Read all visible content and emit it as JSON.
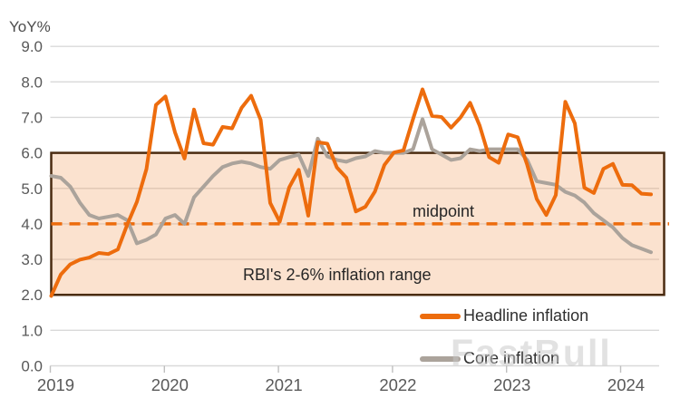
{
  "watermark": "FastBull",
  "colors": {
    "headline": "#ed6c0d",
    "core": "#aba39b",
    "band_fill": "rgba(242,164,105,0.32)",
    "band_border": "#4a2b10",
    "midpoint_line": "#ed6c0d",
    "grid": "#d9d9d9",
    "axis_text": "#595959",
    "annotation_text": "#262626",
    "watermark_text": "#c7c7c7"
  },
  "chart_data": {
    "type": "line",
    "unit_label": "YoY%",
    "frequency": "monthly",
    "x_start": "2019-01",
    "x_end": "2024-04",
    "x_tick_labels": [
      "2019",
      "2020",
      "2021",
      "2022",
      "2023",
      "2024"
    ],
    "y_tick_labels": [
      "0.0",
      "1.0",
      "2.0",
      "3.0",
      "4.0",
      "5.0",
      "6.0",
      "7.0",
      "8.0",
      "9.0"
    ],
    "ylim": [
      0,
      9
    ],
    "grid": "horizontal",
    "legend_position": "bottom-right",
    "band": {
      "from": 2.0,
      "to": 6.0,
      "midpoint": 4.0,
      "label": "RBI's 2-6% inflation range",
      "midpoint_label": "midpoint"
    },
    "series": [
      {
        "name": "Headline inflation",
        "color": "#ed6c0d",
        "values": [
          1.97,
          2.57,
          2.86,
          2.99,
          3.05,
          3.18,
          3.15,
          3.28,
          3.99,
          4.62,
          5.54,
          7.35,
          7.59,
          6.58,
          5.84,
          7.22,
          6.27,
          6.23,
          6.73,
          6.69,
          7.27,
          7.61,
          6.93,
          4.59,
          4.06,
          5.03,
          5.52,
          4.23,
          6.3,
          6.26,
          5.59,
          5.3,
          4.35,
          4.48,
          4.91,
          5.66,
          6.01,
          6.07,
          6.95,
          7.79,
          7.04,
          7.01,
          6.71,
          7.0,
          7.41,
          6.77,
          5.88,
          5.72,
          6.52,
          6.44,
          5.66,
          4.7,
          4.25,
          4.81,
          7.44,
          6.83,
          5.02,
          4.87,
          5.55,
          5.69,
          5.1,
          5.09,
          4.85,
          4.83
        ]
      },
      {
        "name": "Core inflation",
        "color": "#aba39b",
        "values": [
          5.35,
          5.3,
          5.05,
          4.6,
          4.25,
          4.15,
          4.2,
          4.25,
          4.1,
          3.45,
          3.55,
          3.7,
          4.15,
          4.25,
          4.0,
          4.75,
          5.05,
          5.35,
          5.6,
          5.7,
          5.75,
          5.7,
          5.6,
          5.55,
          5.8,
          5.88,
          5.95,
          5.35,
          6.4,
          5.9,
          5.8,
          5.75,
          5.85,
          5.9,
          6.05,
          6.0,
          6.0,
          6.0,
          6.1,
          6.95,
          6.1,
          5.95,
          5.8,
          5.85,
          6.1,
          6.05,
          6.1,
          6.1,
          6.1,
          6.1,
          5.8,
          5.2,
          5.15,
          5.1,
          4.9,
          4.8,
          4.6,
          4.3,
          4.1,
          3.9,
          3.6,
          3.4,
          3.3,
          3.2
        ]
      }
    ]
  }
}
